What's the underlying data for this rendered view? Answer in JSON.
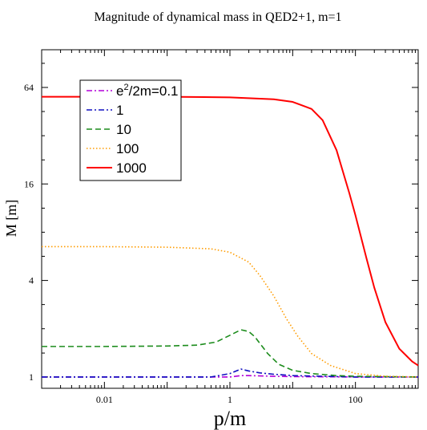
{
  "chart_data": {
    "type": "line",
    "title": "Magnitude of dynamical mass in  QED2+1, m=1",
    "xlabel": "p/m",
    "ylabel": "M [m]",
    "x_scale": "log",
    "y_scale": "log",
    "xlim": [
      0.001,
      1000
    ],
    "ylim": [
      0.85,
      110
    ],
    "x_ticks": [
      0.01,
      1,
      100
    ],
    "x_tick_labels": [
      "0.01",
      "1",
      "100"
    ],
    "y_ticks": [
      1,
      4,
      16,
      64
    ],
    "y_tick_labels": [
      "1",
      "4",
      "16",
      "64"
    ],
    "grid": false,
    "legend_position": "top-left",
    "legend_title_prefix": "e",
    "legend_title_sup": "2",
    "legend_title_suffix": "/2m=0.1",
    "series": [
      {
        "name": "e^2/2m=0.1",
        "color": "#b400d8",
        "dash": "dash-dot",
        "x": [
          0.001,
          0.01,
          0.1,
          1,
          1.5,
          2,
          5,
          10,
          100,
          1000
        ],
        "y": [
          1.0,
          1.0,
          1.0,
          1.0,
          1.02,
          1.02,
          1.01,
          1.005,
          1.0,
          1.0
        ]
      },
      {
        "name": "1",
        "color": "#1010c0",
        "dash": "dash-dot",
        "x": [
          0.001,
          0.01,
          0.1,
          0.5,
          1,
          1.5,
          2,
          3,
          5,
          10,
          30,
          100,
          1000
        ],
        "y": [
          1.0,
          1.0,
          1.0,
          1.0,
          1.05,
          1.12,
          1.09,
          1.06,
          1.04,
          1.02,
          1.01,
          1.0,
          1.0
        ]
      },
      {
        "name": "10",
        "color": "#1c8c1c",
        "dash": "dashed",
        "x": [
          0.001,
          0.01,
          0.1,
          0.3,
          0.6,
          1,
          1.5,
          2,
          2.5,
          3,
          4,
          6,
          10,
          20,
          50,
          100,
          1000
        ],
        "y": [
          1.55,
          1.55,
          1.56,
          1.58,
          1.65,
          1.82,
          1.97,
          1.92,
          1.78,
          1.62,
          1.4,
          1.2,
          1.1,
          1.05,
          1.02,
          1.01,
          1.0
        ]
      },
      {
        "name": "100",
        "color": "#ff9c00",
        "dash": "dotted",
        "x": [
          0.001,
          0.01,
          0.1,
          0.5,
          1,
          2,
          3,
          5,
          8,
          12,
          20,
          40,
          100,
          300,
          1000
        ],
        "y": [
          6.5,
          6.5,
          6.45,
          6.3,
          6.0,
          5.2,
          4.3,
          3.2,
          2.3,
          1.8,
          1.4,
          1.18,
          1.05,
          1.01,
          1.0
        ]
      },
      {
        "name": "1000",
        "color": "#ff0000",
        "dash": "solid",
        "x": [
          0.001,
          0.01,
          0.1,
          1,
          5,
          10,
          20,
          30,
          50,
          80,
          100,
          150,
          200,
          300,
          500,
          800,
          1000
        ],
        "y": [
          56,
          56,
          56,
          55.5,
          54,
          52,
          47,
          40,
          26,
          14,
          10.2,
          5.5,
          3.6,
          2.2,
          1.5,
          1.25,
          1.18
        ]
      }
    ]
  }
}
